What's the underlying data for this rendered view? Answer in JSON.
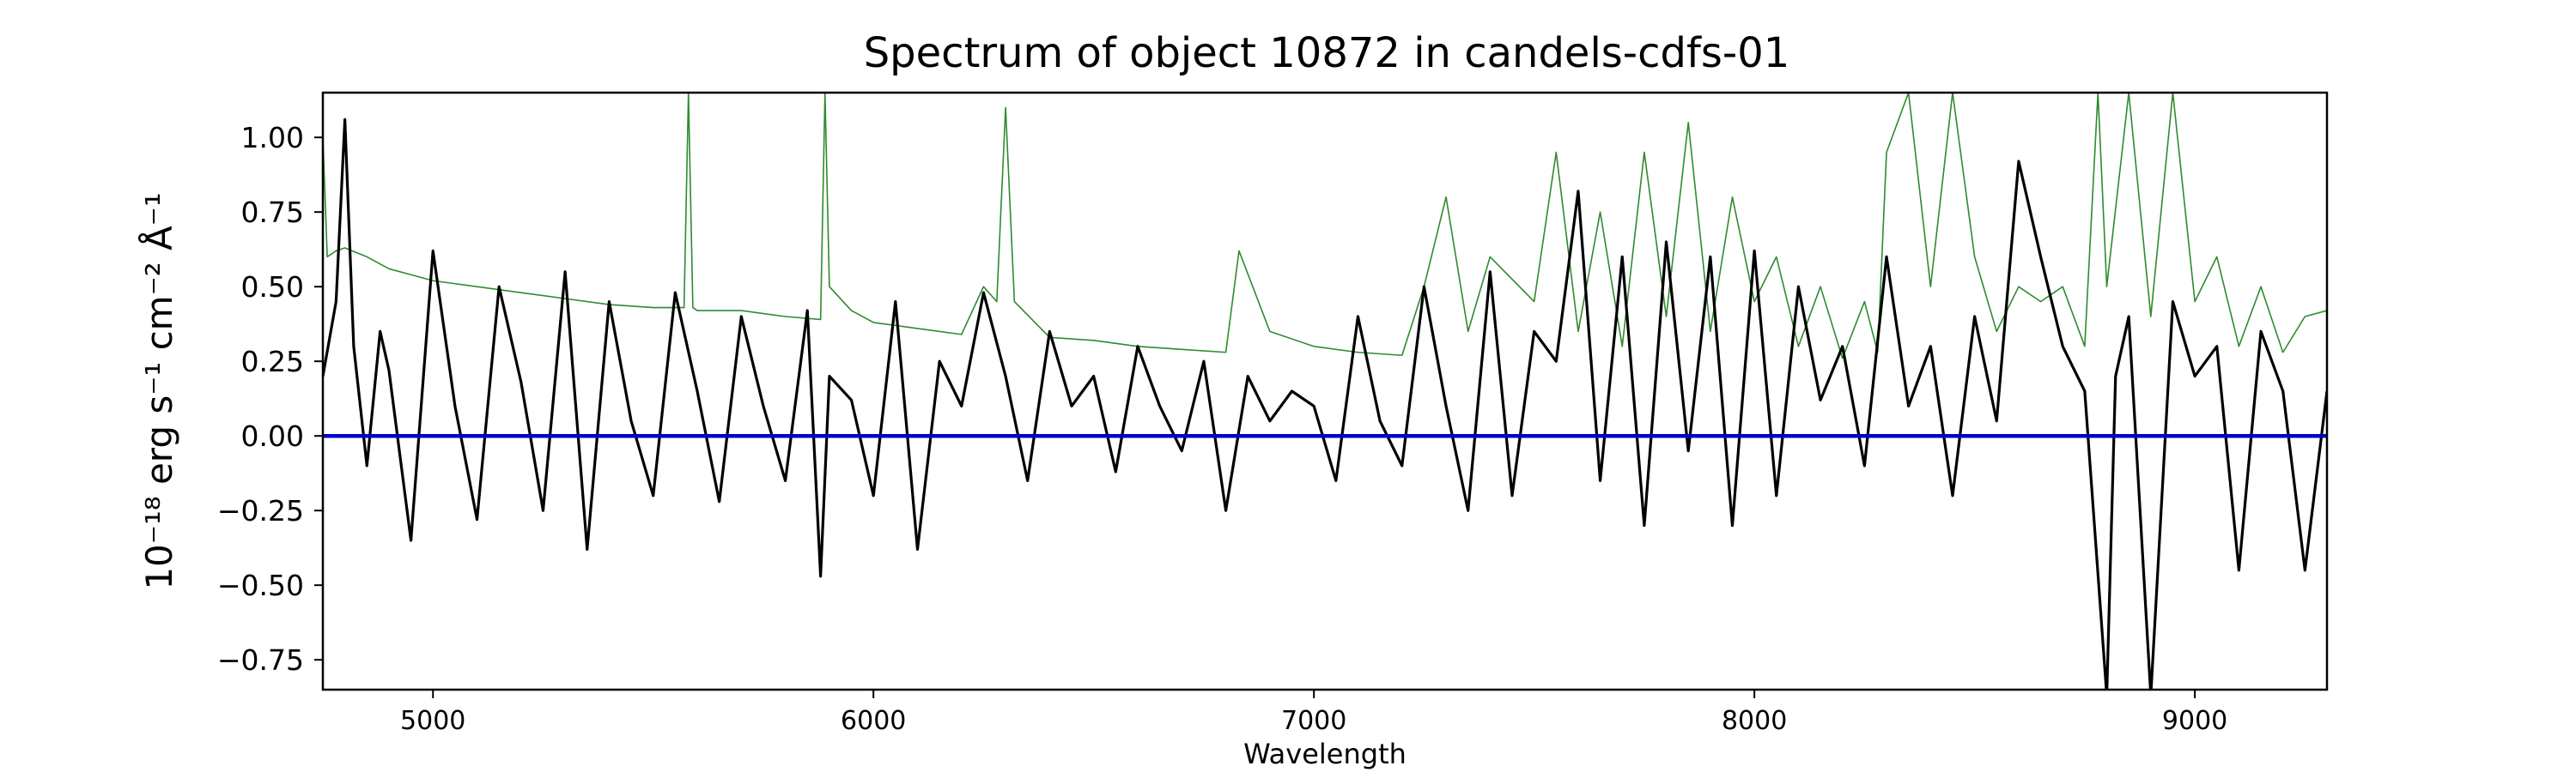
{
  "chart_data": {
    "type": "line",
    "title": "Spectrum of object 10872 in candels-cdfs-01",
    "xlabel": "Wavelength",
    "ylabel": "10⁻¹⁸ erg s⁻¹ cm⁻² Å⁻¹",
    "xlim": [
      4750,
      9300
    ],
    "ylim": [
      -0.85,
      1.15
    ],
    "x_ticks": [
      5000,
      6000,
      7000,
      8000,
      9000
    ],
    "x_tick_labels": [
      "5000",
      "6000",
      "7000",
      "8000",
      "9000"
    ],
    "y_ticks": [
      -0.75,
      -0.5,
      -0.25,
      0.0,
      0.25,
      0.5,
      0.75,
      1.0
    ],
    "y_tick_labels": [
      "−0.75",
      "−0.50",
      "−0.25",
      "0.00",
      "0.25",
      "0.50",
      "0.75",
      "1.00"
    ],
    "grid": false,
    "colors": {
      "flux": "#000000",
      "noise": "#2e8b2e",
      "zero": "#0000cc"
    },
    "series": [
      {
        "role": "flux",
        "x": [
          4750,
          4780,
          4800,
          4820,
          4850,
          4880,
          4900,
          4950,
          5000,
          5050,
          5100,
          5150,
          5200,
          5250,
          5300,
          5350,
          5400,
          5450,
          5500,
          5550,
          5600,
          5650,
          5700,
          5750,
          5800,
          5850,
          5880,
          5900,
          5950,
          6000,
          6050,
          6100,
          6150,
          6200,
          6250,
          6300,
          6350,
          6400,
          6450,
          6500,
          6550,
          6600,
          6650,
          6700,
          6750,
          6800,
          6850,
          6900,
          6950,
          7000,
          7050,
          7100,
          7150,
          7200,
          7250,
          7300,
          7350,
          7400,
          7450,
          7500,
          7550,
          7600,
          7650,
          7700,
          7750,
          7800,
          7850,
          7900,
          7950,
          8000,
          8050,
          8100,
          8150,
          8200,
          8250,
          8300,
          8350,
          8400,
          8450,
          8500,
          8550,
          8600,
          8650,
          8700,
          8750,
          8800,
          8820,
          8850,
          8900,
          8950,
          9000,
          9050,
          9100,
          9150,
          9200,
          9250,
          9300
        ],
        "y": [
          0.2,
          0.45,
          1.06,
          0.3,
          -0.1,
          0.35,
          0.22,
          -0.35,
          0.62,
          0.1,
          -0.28,
          0.5,
          0.18,
          -0.25,
          0.55,
          -0.38,
          0.45,
          0.05,
          -0.2,
          0.48,
          0.15,
          -0.22,
          0.4,
          0.1,
          -0.15,
          0.42,
          -0.47,
          0.2,
          0.12,
          -0.2,
          0.45,
          -0.38,
          0.25,
          0.1,
          0.48,
          0.2,
          -0.15,
          0.35,
          0.1,
          0.2,
          -0.12,
          0.3,
          0.1,
          -0.05,
          0.25,
          -0.25,
          0.2,
          0.05,
          0.15,
          0.1,
          -0.15,
          0.4,
          0.05,
          -0.1,
          0.5,
          0.1,
          -0.25,
          0.55,
          -0.2,
          0.35,
          0.25,
          0.82,
          -0.15,
          0.6,
          -0.3,
          0.65,
          -0.05,
          0.6,
          -0.3,
          0.62,
          -0.2,
          0.5,
          0.12,
          0.3,
          -0.1,
          0.6,
          0.1,
          0.3,
          -0.2,
          0.4,
          0.05,
          0.92,
          0.6,
          0.3,
          0.15,
          -0.87,
          0.2,
          0.4,
          -0.87,
          0.45,
          0.2,
          0.3,
          -0.45,
          0.35,
          0.15,
          -0.45,
          0.15
        ]
      },
      {
        "role": "noise",
        "x": [
          4750,
          4760,
          4780,
          4800,
          4850,
          4900,
          4950,
          5000,
          5100,
          5200,
          5300,
          5400,
          5500,
          5570,
          5580,
          5590,
          5600,
          5700,
          5800,
          5880,
          5890,
          5900,
          5950,
          6000,
          6100,
          6200,
          6250,
          6280,
          6300,
          6320,
          6400,
          6500,
          6600,
          6700,
          6800,
          6830,
          6900,
          7000,
          7100,
          7200,
          7250,
          7300,
          7350,
          7400,
          7500,
          7550,
          7600,
          7650,
          7700,
          7750,
          7800,
          7850,
          7900,
          7950,
          8000,
          8050,
          8100,
          8150,
          8200,
          8250,
          8280,
          8300,
          8350,
          8400,
          8450,
          8500,
          8550,
          8600,
          8650,
          8700,
          8750,
          8780,
          8800,
          8850,
          8900,
          8950,
          9000,
          9050,
          9100,
          9150,
          9200,
          9250,
          9300
        ],
        "y": [
          1.0,
          0.6,
          0.62,
          0.63,
          0.6,
          0.56,
          0.54,
          0.52,
          0.5,
          0.48,
          0.46,
          0.44,
          0.43,
          0.43,
          1.15,
          0.43,
          0.42,
          0.42,
          0.4,
          0.39,
          1.15,
          0.5,
          0.42,
          0.38,
          0.36,
          0.34,
          0.5,
          0.45,
          1.1,
          0.45,
          0.33,
          0.32,
          0.3,
          0.29,
          0.28,
          0.62,
          0.35,
          0.3,
          0.28,
          0.27,
          0.5,
          0.8,
          0.35,
          0.6,
          0.45,
          0.95,
          0.35,
          0.75,
          0.3,
          0.95,
          0.4,
          1.05,
          0.35,
          0.8,
          0.45,
          0.6,
          0.3,
          0.5,
          0.26,
          0.45,
          0.28,
          0.95,
          1.15,
          0.5,
          1.15,
          0.6,
          0.35,
          0.5,
          0.45,
          0.5,
          0.3,
          1.15,
          0.5,
          1.15,
          0.4,
          1.15,
          0.45,
          0.6,
          0.3,
          0.5,
          0.28,
          0.4,
          0.42
        ]
      },
      {
        "role": "zero",
        "x": [
          4750,
          9300
        ],
        "y": [
          0.0,
          0.0
        ]
      }
    ]
  }
}
